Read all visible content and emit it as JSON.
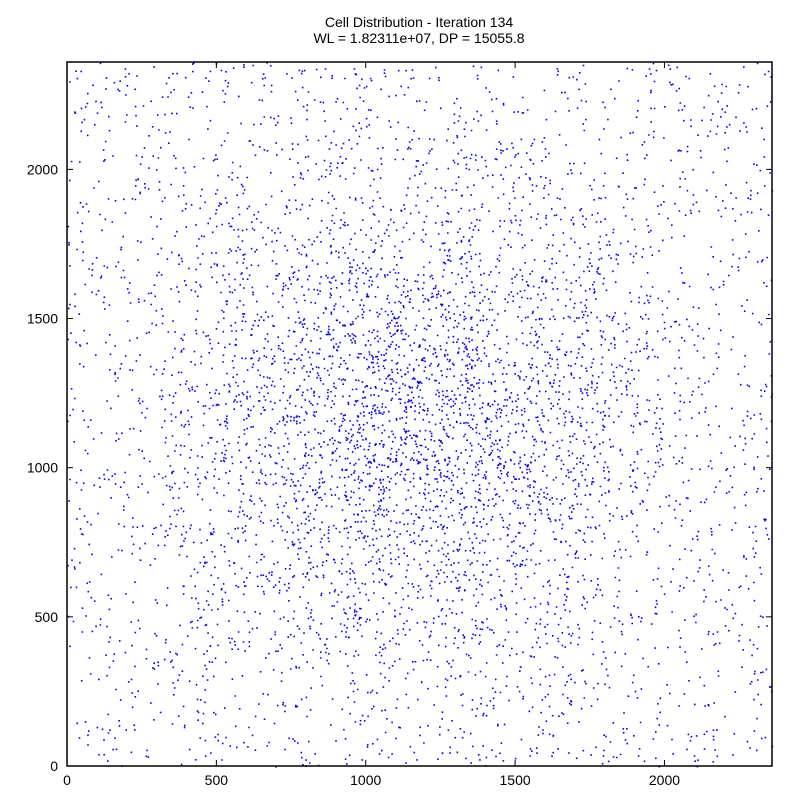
{
  "chart_data": {
    "type": "scatter",
    "title": "Cell Distribution - Iteration 134",
    "subtitle": "WL = 1.82311e+07, DP = 15055.8",
    "xlabel": "",
    "ylabel": "",
    "xlim": [
      0,
      2360
    ],
    "ylim": [
      0,
      2360
    ],
    "xticks": [
      0,
      500,
      1000,
      1500,
      2000
    ],
    "yticks": [
      0,
      500,
      1000,
      1500,
      2000
    ],
    "grid": false,
    "legend": "none",
    "series": [
      {
        "point_count": 12000,
        "center": [
          1180,
          1180
        ],
        "color": "#0000ff"
      }
    ]
  }
}
